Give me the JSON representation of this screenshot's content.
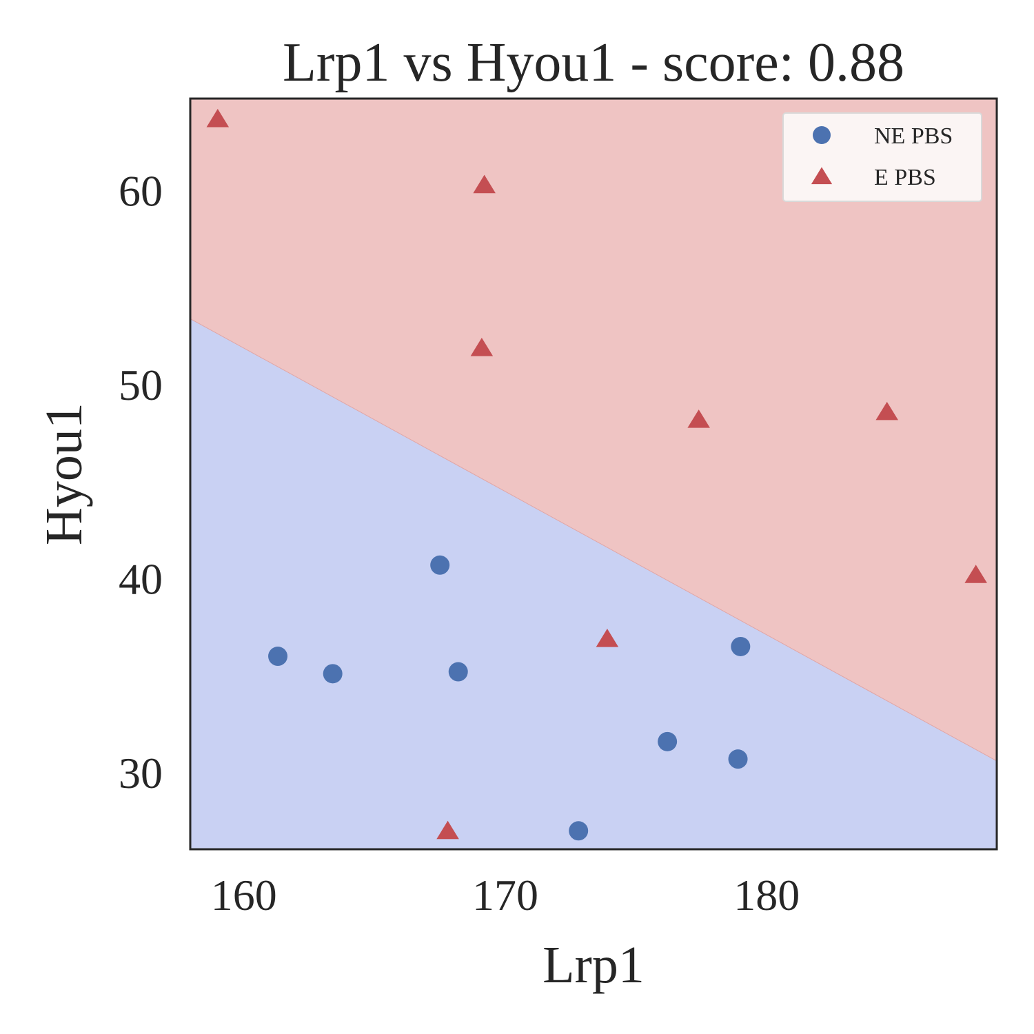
{
  "chart_data": {
    "type": "scatter",
    "title": "Lrp1 vs Hyou1 - score: 0.88",
    "xlabel": "Lrp1",
    "ylabel": "Hyou1",
    "xlim": [
      157.95,
      188.8
    ],
    "ylim": [
      26.05,
      64.75
    ],
    "xticks": [
      160,
      170,
      180
    ],
    "yticks": [
      30,
      40,
      50,
      60
    ],
    "grid": false,
    "legend_position": "top-right",
    "decision_boundary": {
      "points": [
        [
          157.95,
          53.4
        ],
        [
          188.8,
          30.6
        ]
      ],
      "region_above": "E PBS",
      "region_below": "NE PBS"
    },
    "region_colors": {
      "NE PBS": "#c9d1f3",
      "E PBS": "#efc4c3"
    },
    "series": [
      {
        "name": "NE PBS",
        "marker": "circle",
        "color": "#4c72b0",
        "points": [
          [
            161.3,
            36.0
          ],
          [
            163.4,
            35.1
          ],
          [
            167.5,
            40.7
          ],
          [
            168.2,
            35.2
          ],
          [
            172.8,
            27.0
          ],
          [
            176.2,
            31.6
          ],
          [
            178.9,
            30.7
          ],
          [
            179.0,
            36.5
          ]
        ]
      },
      {
        "name": "E PBS",
        "marker": "triangle",
        "color": "#c44e52",
        "points": [
          [
            159.0,
            63.7
          ],
          [
            167.8,
            27.0
          ],
          [
            169.1,
            51.9
          ],
          [
            169.2,
            60.3
          ],
          [
            173.9,
            36.9
          ],
          [
            177.4,
            48.2
          ],
          [
            184.6,
            48.6
          ],
          [
            188.0,
            40.2
          ]
        ]
      }
    ]
  }
}
